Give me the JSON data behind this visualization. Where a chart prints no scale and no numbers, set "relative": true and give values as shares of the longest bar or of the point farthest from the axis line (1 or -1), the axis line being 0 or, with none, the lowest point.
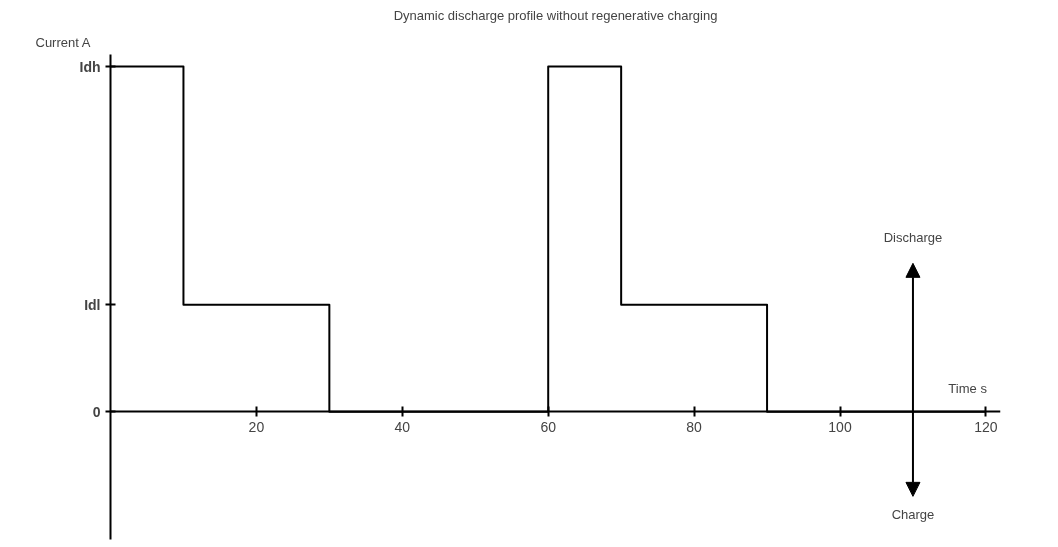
{
  "chart_data": {
    "type": "step",
    "title": "Dynamic discharge profile without regenerative charging",
    "xlabel": "Time  s",
    "ylabel": "Current  A",
    "x": [
      0,
      10,
      30,
      60,
      70,
      90,
      120
    ],
    "series": [
      {
        "color": "#000000",
        "values": [
          1,
          0.31,
          0,
          1,
          0.31,
          0,
          0
        ]
      }
    ],
    "relative": true,
    "xlim": [
      0,
      122
    ],
    "xticks": [
      20,
      40,
      60,
      80,
      100,
      120
    ],
    "annotations": [
      "0",
      "Idl",
      "Idh",
      "Discharge",
      "Charge"
    ],
    "grid": false,
    "marker": "none",
    "line_style": "solid"
  }
}
